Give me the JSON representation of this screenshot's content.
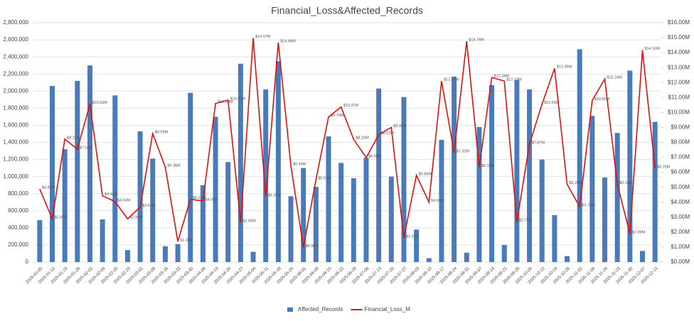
{
  "chart_data": {
    "type": "bar-line",
    "title": "Financial_Loss&Affected_Records",
    "categories": [
      "2025-01-05",
      "2025-01-12",
      "2025-01-19",
      "2025-01-26",
      "2025-02-02",
      "2025-02-09",
      "2025-02-16",
      "2025-02-23",
      "2025-03-02",
      "2025-03-09",
      "2025-03-16",
      "2025-03-23",
      "2025-03-30",
      "2025-04-06",
      "2025-04-13",
      "2025-04-20",
      "2025-04-27",
      "2025-05-04",
      "2025-05-11",
      "2025-05-18",
      "2025-05-25",
      "2025-06-01",
      "2025-06-08",
      "2025-06-15",
      "2025-06-22",
      "2025-06-29",
      "2025-07-06",
      "2025-07-13",
      "2025-07-20",
      "2025-07-27",
      "2025-08-03",
      "2025-08-10",
      "2025-08-17",
      "2025-08-24",
      "2025-08-31",
      "2025-09-07",
      "2025-09-14",
      "2025-09-21",
      "2025-09-28",
      "2025-10-05",
      "2025-10-12",
      "2025-10-19",
      "2025-10-26",
      "2025-11-02",
      "2025-11-09",
      "2025-11-16",
      "2025-11-23",
      "2025-11-30",
      "2025-12-07",
      "2025-12-14"
    ],
    "series": [
      {
        "name": "Affected_Records",
        "color": "#4a7ab8",
        "kind": "bar",
        "axis": "y",
        "values": [
          490000,
          2060000,
          1320000,
          2120000,
          2300000,
          500000,
          1950000,
          140000,
          1530000,
          1210000,
          185000,
          210000,
          1980000,
          900000,
          1700000,
          1170000,
          2320000,
          120000,
          2020000,
          2350000,
          770000,
          1100000,
          880000,
          1470000,
          1160000,
          980000,
          1220000,
          2030000,
          1000000,
          1930000,
          380000,
          45000,
          1430000,
          2170000,
          110000,
          1580000,
          2070000,
          200000,
          2130000,
          2020000,
          1200000,
          550000,
          70000,
          2490000,
          1710000,
          990000,
          1510000,
          2240000,
          130000,
          1640000
        ]
      },
      {
        "name": "Financial_Loss_M",
        "color": "#e01010",
        "kind": "line",
        "axis": "y2",
        "values": [
          4.89,
          2.89,
          8.22,
          7.55,
          10.56,
          4.43,
          4.04,
          2.89,
          3.67,
          8.59,
          6.36,
          1.38,
          4.19,
          4.09,
          10.6,
          10.83,
          2.65,
          14.97,
          4.37,
          14.68,
          6.46,
          0.98,
          5.51,
          9.7,
          10.37,
          8.2,
          6.98,
          8.52,
          9.0,
          1.62,
          5.8,
          4.0,
          12.1,
          7.32,
          14.76,
          6.33,
          12.34,
          12.1,
          2.7,
          7.87,
          10.55,
          12.95,
          5.2,
          3.7,
          10.8,
          12.24,
          5.2,
          1.89,
          14.16,
          6.26
        ],
        "value_labels": [
          "$4.89M",
          "$2.89M",
          "$8.22M",
          "$7.55M",
          "$10.56M",
          "$4.43M",
          "$4.04M",
          "$2.89M",
          "$3.67M",
          "$8.59M",
          "$6.36M",
          "$1.38M",
          "$4.19M",
          "$4.09M",
          "$10.60M",
          "$10.83M",
          "$2.65M",
          "$14.97M",
          "$4.37M",
          "$14.68M",
          "$6.46M",
          "$0.98M",
          "$5.51M",
          "$9.70M",
          "$10.37M",
          "$8.20M",
          "$6.98M",
          "$8.52M",
          "$9.00M",
          "$1.62M",
          "$5.80M",
          "$4.00M",
          "$12.10M",
          "$7.32M",
          "$14.76M",
          "$6.33M",
          "$12.34M",
          "$12.10M",
          "$2.70M",
          "$7.87M",
          "$10.55M",
          "$12.95M",
          "$5.20M",
          "$3.70M",
          "$10.80M",
          "$12.24M",
          "$5.20M",
          "$1.89M",
          "$14.16M",
          "$6.26M"
        ]
      }
    ],
    "ylim": [
      0,
      2800000
    ],
    "yticks": [
      0,
      {
        "value": 200000,
        "label": "200,000"
      },
      {
        "value": 400000,
        "label": "400,000"
      },
      {
        "value": 600000,
        "label": "600,000"
      },
      {
        "value": 800000,
        "label": "800,000"
      },
      {
        "value": 1000000,
        "label": "1,000,000"
      },
      {
        "value": 1200000,
        "label": "1,200,000"
      },
      {
        "value": 1400000,
        "label": "1,400,000"
      },
      {
        "value": 1600000,
        "label": "1,600,000"
      },
      {
        "value": 1800000,
        "label": "1,800,000"
      },
      {
        "value": 2000000,
        "label": "2,000,000"
      },
      {
        "value": 2200000,
        "label": "2,200,000"
      },
      {
        "value": 2400000,
        "label": "2,400,000"
      },
      {
        "value": 2600000,
        "label": "2,600,000"
      },
      {
        "value": 2800000,
        "label": "2,800,000"
      }
    ],
    "y2lim": [
      0,
      16
    ],
    "y2ticks": [
      {
        "value": 0,
        "label": "$0.00M"
      },
      {
        "value": 1,
        "label": "$1.00M"
      },
      {
        "value": 2,
        "label": "$2.00M"
      },
      {
        "value": 3,
        "label": "$3.00M"
      },
      {
        "value": 4,
        "label": "$4.00M"
      },
      {
        "value": 5,
        "label": "$5.00M"
      },
      {
        "value": 6,
        "label": "$6.00M"
      },
      {
        "value": 7,
        "label": "$7.00M"
      },
      {
        "value": 8,
        "label": "$8.00M"
      },
      {
        "value": 9,
        "label": "$9.00M"
      },
      {
        "value": 10,
        "label": "$10.00M"
      },
      {
        "value": 11,
        "label": "$11.00M"
      },
      {
        "value": 12,
        "label": "$12.00M"
      },
      {
        "value": 13,
        "label": "$13.00M"
      },
      {
        "value": 14,
        "label": "$14.00M"
      },
      {
        "value": 15,
        "label": "$15.00M"
      },
      {
        "value": 16,
        "label": "$16.00M"
      }
    ],
    "grid": true,
    "legend": "bottom"
  }
}
